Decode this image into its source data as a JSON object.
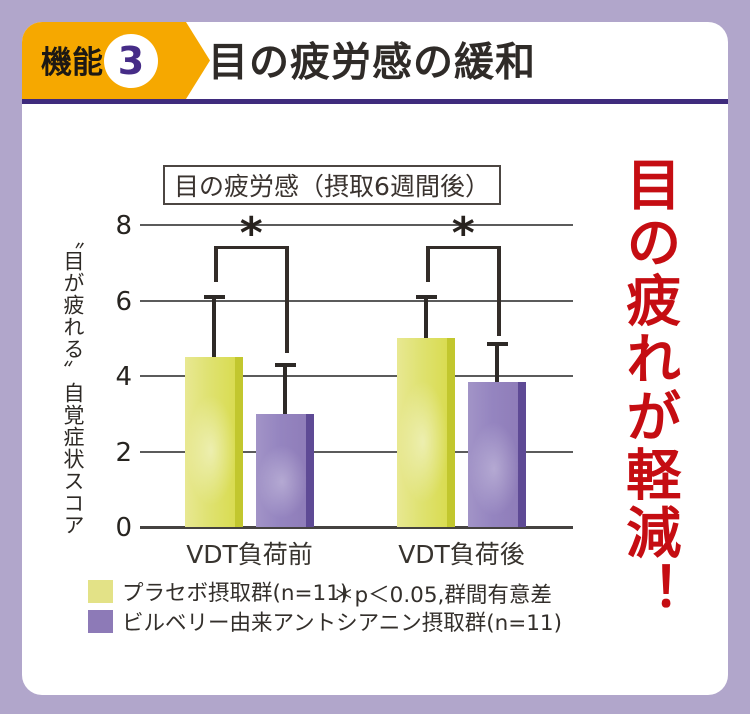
{
  "page": {
    "background_color": "#b1a6cb",
    "card_color": "#ffffff"
  },
  "header": {
    "badge_label": "機能",
    "badge_number": "3",
    "badge_color": "#f6a800",
    "badge_number_color": "#462c87",
    "title": "目の疲労感の緩和",
    "divider_color": "#3f2b7d"
  },
  "side_message": {
    "text": "目の疲れが軽減！",
    "color": "#c50d12"
  },
  "chart_data": {
    "type": "bar",
    "title": "目の疲労感（摂取6週間後）",
    "ylabel": "〝目が疲れる〟自覚症状スコア",
    "xlabel": "",
    "categories": [
      "VDT負荷前",
      "VDT負荷後"
    ],
    "series": [
      {
        "name": "プラセボ摂取群(n=11)",
        "color": "#dcdf5e",
        "edge_color": "#c2c72e",
        "legend_color": "#e3e287",
        "values": [
          4.5,
          5.0
        ],
        "error_top": [
          6.1,
          6.1
        ]
      },
      {
        "name": "ビルベリー由来アントシアニン摂取群(n=11)",
        "color": "#8f7db9",
        "edge_color": "#5e4a95",
        "legend_color": "#8d7ab7",
        "values": [
          3.0,
          3.85
        ],
        "error_top": [
          4.3,
          4.85
        ]
      }
    ],
    "ylim": [
      0,
      8
    ],
    "yticks": [
      0,
      2,
      4,
      6,
      8
    ],
    "grid": true,
    "legend_position": "bottom-left",
    "significance": {
      "note": "＊p＜0.05,群間有意差",
      "brackets": [
        {
          "label": "*",
          "group": 0,
          "top": 7.45,
          "left_end": 6.5,
          "right_end": 4.6
        },
        {
          "label": "*",
          "group": 1,
          "top": 7.45,
          "left_end": 6.5,
          "right_end": 5.05
        }
      ]
    }
  }
}
